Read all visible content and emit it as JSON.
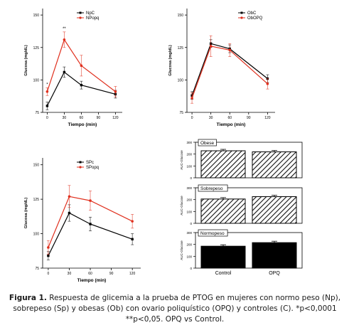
{
  "caption": {
    "label": "Figura 1.",
    "text": "Respuesta de glicemia a la prueba de PTOG en mujeres con normo peso (Np), sobrepeso (Sp) y obesas (Ob) con ovario poliquístico (OPQ) y controles (C). *p<0,0001 **p<0,05. OPQ vs Control."
  },
  "chart_data": [
    {
      "id": "np",
      "type": "line",
      "xlabel": "Tiempo (min)",
      "ylabel": "Glucosa (mg/dL)",
      "xlim": [
        -8,
        132
      ],
      "ylim": [
        75,
        155
      ],
      "xticks": [
        0,
        30,
        60,
        90,
        120
      ],
      "yticks": [
        75,
        100,
        125,
        150
      ],
      "ytick_labels": [
        "75",
        "100",
        "125",
        "150"
      ],
      "legend": "top-left",
      "annotations": [
        {
          "x": 0,
          "text": "*"
        },
        {
          "x": 30,
          "text": "**"
        }
      ],
      "series": [
        {
          "name": "NpC",
          "color": "#000000",
          "x": [
            0,
            30,
            60,
            120
          ],
          "y": [
            80,
            106,
            96,
            89
          ],
          "err": [
            3,
            4,
            3,
            3
          ]
        },
        {
          "name": "NPopq",
          "color": "#e0301e",
          "x": [
            0,
            30,
            60,
            120
          ],
          "y": [
            91,
            131,
            111,
            91
          ],
          "err": [
            3,
            6,
            8,
            4
          ]
        }
      ]
    },
    {
      "id": "ob",
      "type": "line",
      "xlabel": "Tiempo (min)",
      "ylabel": "Glucosa (mg/dL)",
      "xlim": [
        -8,
        132
      ],
      "ylim": [
        75,
        155
      ],
      "xticks": [
        0,
        30,
        60,
        90,
        120
      ],
      "yticks": [
        75,
        100,
        125,
        150
      ],
      "ytick_labels": [
        "75",
        "100",
        "125",
        "150"
      ],
      "legend": "top-right",
      "annotations": [],
      "series": [
        {
          "name": "ObC",
          "color": "#000000",
          "x": [
            0,
            30,
            60,
            120
          ],
          "y": [
            88,
            128,
            124,
            101
          ],
          "err": [
            3,
            3,
            3,
            3
          ]
        },
        {
          "name": "ObOPQ",
          "color": "#e0301e",
          "x": [
            0,
            30,
            60,
            120
          ],
          "y": [
            86,
            126,
            123,
            97
          ],
          "err": [
            4,
            8,
            5,
            4
          ]
        }
      ]
    },
    {
      "id": "sp",
      "type": "line",
      "xlabel": "Tiempo (min)",
      "ylabel": "Glucosa (mg/dL)",
      "xlim": [
        -8,
        132
      ],
      "ylim": [
        75,
        155
      ],
      "xticks": [
        0,
        30,
        60,
        90,
        120
      ],
      "yticks": [
        75,
        100,
        125,
        150
      ],
      "ytick_labels": [
        "75",
        "100",
        "125",
        "150"
      ],
      "legend": "top-left",
      "annotations": [],
      "series": [
        {
          "name": "SPc",
          "color": "#000000",
          "x": [
            0,
            30,
            60,
            120
          ],
          "y": [
            84,
            115,
            107,
            96
          ],
          "err": [
            3,
            6,
            5,
            4
          ]
        },
        {
          "name": "SPopq",
          "color": "#e0301e",
          "x": [
            0,
            30,
            60,
            120
          ],
          "y": [
            90,
            127,
            124,
            109
          ],
          "err": [
            5,
            8,
            7,
            5
          ]
        }
      ]
    },
    {
      "id": "auc-obese",
      "type": "bar",
      "title": "Obese",
      "categories": [
        "Control",
        "OPQ"
      ],
      "values": [
        228,
        219
      ],
      "ylabel": "AUC-Glucose",
      "ylim": [
        0,
        300
      ],
      "yticks": [
        0,
        100,
        200,
        300
      ],
      "show_xticks": false
    },
    {
      "id": "auc-sobrepeso",
      "type": "bar",
      "title": "Sobrepeso",
      "categories": [
        "Control",
        "OPQ"
      ],
      "values": [
        205,
        225
      ],
      "ylabel": "AUC-Glucose",
      "ylim": [
        0,
        300
      ],
      "yticks": [
        0,
        100,
        200,
        300
      ],
      "show_xticks": false
    },
    {
      "id": "auc-normopeso",
      "type": "bar",
      "title": "Normopeso",
      "categories": [
        "Control",
        "OPQ"
      ],
      "values": [
        185,
        215
      ],
      "ylabel": "AUC-Glucose",
      "ylim": [
        0,
        300
      ],
      "yticks": [
        0,
        100,
        200,
        300
      ],
      "show_xticks": true
    }
  ]
}
